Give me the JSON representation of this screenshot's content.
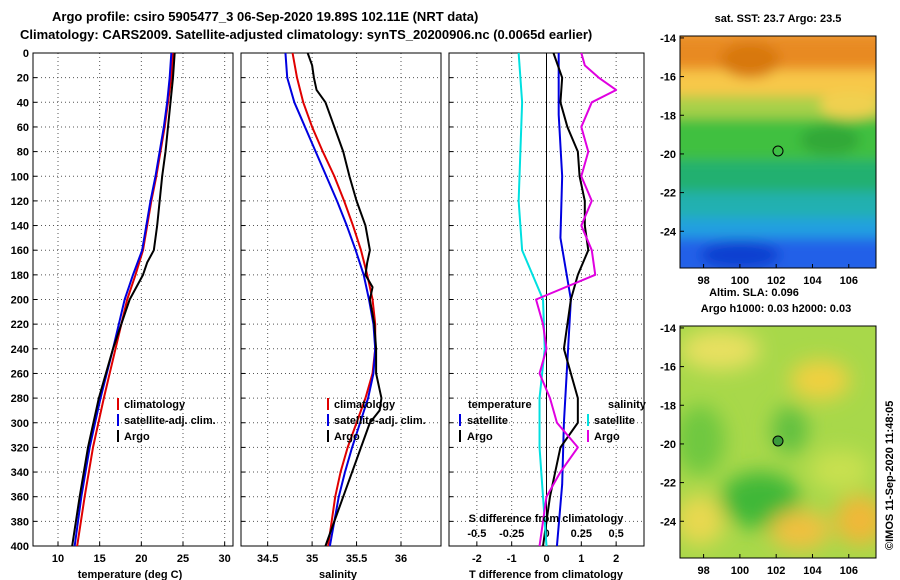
{
  "header": {
    "line1": "Argo profile: csiro 5905477_3 06-Sep-2020 19.89S 102.11E (NRT data)",
    "line2": "Climatology: CARS2009. Satellite-adjusted climatology: synTS_20200906.nc (0.0065d earlier)"
  },
  "chart_data": [
    {
      "type": "line",
      "title": "",
      "xlabel": "temperature (deg C)",
      "ylabel": "",
      "xlim": [
        7,
        31
      ],
      "ylim": [
        400,
        0
      ],
      "xticks": [
        10,
        15,
        20,
        25,
        30
      ],
      "yticks": [
        0,
        20,
        40,
        60,
        80,
        100,
        120,
        140,
        160,
        180,
        200,
        220,
        240,
        260,
        280,
        300,
        320,
        340,
        360,
        380,
        400
      ],
      "grid": true,
      "legend": [
        "climatology",
        "satellite-adj. clim.",
        "Argo"
      ],
      "series": [
        {
          "name": "climatology",
          "color": "#e00000",
          "y": [
            0,
            20,
            40,
            60,
            80,
            100,
            120,
            140,
            160,
            180,
            200,
            240,
            280,
            320,
            360,
            400
          ],
          "x": [
            23.8,
            23.6,
            23.2,
            22.8,
            22.3,
            21.8,
            21.2,
            20.7,
            20.2,
            19.3,
            18.3,
            16.9,
            15.5,
            14.2,
            13.2,
            12.3
          ]
        },
        {
          "name": "satellite-adj. clim.",
          "color": "#0000e0",
          "y": [
            0,
            20,
            40,
            60,
            80,
            100,
            120,
            140,
            160,
            180,
            200,
            240,
            280,
            320,
            360,
            400
          ],
          "x": [
            23.6,
            23.4,
            23.1,
            22.7,
            22.2,
            21.7,
            21.1,
            20.6,
            20.1,
            19.0,
            18.0,
            16.6,
            15.1,
            13.8,
            12.8,
            12.0
          ]
        },
        {
          "name": "Argo",
          "color": "#000000",
          "y": [
            0,
            20,
            40,
            60,
            80,
            100,
            120,
            140,
            160,
            170,
            180,
            200,
            240,
            280,
            320,
            360,
            400
          ],
          "x": [
            24.0,
            23.8,
            23.5,
            23.2,
            22.9,
            22.5,
            22.2,
            21.9,
            21.5,
            20.7,
            20.2,
            18.6,
            16.6,
            14.9,
            13.6,
            12.6,
            11.7
          ]
        }
      ]
    },
    {
      "type": "line",
      "title": "",
      "xlabel": "salinity",
      "ylabel": "",
      "xlim": [
        34.2,
        36.45
      ],
      "ylim": [
        400,
        0
      ],
      "xticks": [
        34.5,
        35,
        35.5,
        36
      ],
      "xtick_labels": [
        "34.5",
        "35",
        "35.5",
        "36"
      ],
      "grid": true,
      "legend": [
        "climatology",
        "satellite-adj. clim.",
        "Argo"
      ],
      "series": [
        {
          "name": "climatology",
          "color": "#e00000",
          "y": [
            0,
            20,
            40,
            60,
            80,
            100,
            120,
            140,
            160,
            180,
            200,
            220,
            240,
            260,
            280,
            300,
            320,
            340,
            360,
            380,
            400
          ],
          "x": [
            34.78,
            34.83,
            34.9,
            35.0,
            35.12,
            35.25,
            35.36,
            35.46,
            35.55,
            35.62,
            35.68,
            35.71,
            35.71,
            35.68,
            35.6,
            35.5,
            35.4,
            35.32,
            35.26,
            35.22,
            35.18
          ]
        },
        {
          "name": "satellite-adj. clim.",
          "color": "#0000e0",
          "y": [
            0,
            20,
            40,
            60,
            80,
            100,
            120,
            140,
            160,
            180,
            200,
            220,
            240,
            260,
            280,
            300,
            320,
            340,
            360,
            380,
            400
          ],
          "x": [
            34.7,
            34.72,
            34.8,
            34.92,
            35.04,
            35.16,
            35.28,
            35.39,
            35.49,
            35.58,
            35.64,
            35.69,
            35.71,
            35.69,
            35.63,
            35.54,
            35.45,
            35.37,
            35.3,
            35.25,
            35.2
          ]
        },
        {
          "name": "Argo",
          "color": "#000000",
          "y": [
            0,
            10,
            20,
            30,
            40,
            60,
            80,
            100,
            120,
            140,
            160,
            170,
            180,
            190,
            200,
            220,
            240,
            260,
            280,
            290,
            300,
            320,
            340,
            360,
            380,
            400
          ],
          "x": [
            34.95,
            35.0,
            35.02,
            35.05,
            35.15,
            35.25,
            35.35,
            35.42,
            35.5,
            35.6,
            35.65,
            35.62,
            35.6,
            35.68,
            35.65,
            35.7,
            35.72,
            35.72,
            35.78,
            35.76,
            35.65,
            35.55,
            35.45,
            35.35,
            35.25,
            35.15
          ]
        }
      ]
    },
    {
      "type": "line",
      "title": "",
      "xlabel": "T difference from climatology",
      "xlabel_top": "S difference from climatology",
      "ylabel": "",
      "xlim": [
        -2.8,
        2.8
      ],
      "ylim": [
        400,
        0
      ],
      "xticks": [
        -2,
        -1,
        0,
        1,
        2
      ],
      "xticks_top": [
        -0.5,
        -0.25,
        0,
        0.25,
        0.5
      ],
      "xtick_top_labels": [
        "-0.5",
        "-0.25",
        "0",
        "0.25",
        "0.5"
      ],
      "grid": true,
      "legend_temperature": {
        "title": "temperature",
        "items": [
          "satellite",
          "Argo"
        ]
      },
      "legend_salinity": {
        "title": "salinity",
        "items": [
          "satellite",
          "Argo"
        ]
      },
      "series": [
        {
          "name": "temperature satellite",
          "color": "#0000e0",
          "y": [
            0,
            50,
            100,
            150,
            200,
            250,
            300,
            350,
            400
          ],
          "x": [
            0.35,
            0.35,
            0.45,
            0.4,
            0.7,
            0.6,
            0.5,
            0.45,
            0.3
          ]
        },
        {
          "name": "temperature Argo",
          "color": "#000000",
          "y": [
            0,
            20,
            40,
            60,
            80,
            100,
            120,
            140,
            160,
            180,
            200,
            240,
            280,
            300,
            320,
            360,
            400
          ],
          "x": [
            0.2,
            0.45,
            0.4,
            0.6,
            0.9,
            0.95,
            1.1,
            1.1,
            1.2,
            0.9,
            0.7,
            0.5,
            0.9,
            0.9,
            0.4,
            0.1,
            -0.1
          ]
        },
        {
          "name": "salinity satellite",
          "color": "#00e0e0",
          "y": [
            0,
            40,
            80,
            120,
            160,
            200,
            240,
            280,
            320,
            360,
            400
          ],
          "x": [
            -0.8,
            -0.7,
            -0.75,
            -0.8,
            -0.7,
            -0.1,
            -0.05,
            -0.2,
            -0.2,
            -0.1,
            0.0
          ]
        },
        {
          "name": "salinity Argo",
          "color": "#e000e0",
          "y": [
            0,
            10,
            20,
            30,
            40,
            60,
            80,
            100,
            120,
            140,
            160,
            180,
            200,
            220,
            240,
            260,
            280,
            300,
            320,
            340,
            360,
            380,
            400
          ],
          "x": [
            1.0,
            1.1,
            1.5,
            2.0,
            1.3,
            1.0,
            1.2,
            1.0,
            1.3,
            1.0,
            1.3,
            1.4,
            -0.3,
            -0.1,
            0.0,
            -0.2,
            0.1,
            0.3,
            0.9,
            0.4,
            0.0,
            -0.1,
            -0.2
          ]
        }
      ]
    }
  ],
  "maps": {
    "sst": {
      "title": "sat. SST: 23.7 Argo: 23.5",
      "xticks": [
        "98",
        "100",
        "102",
        "104",
        "106"
      ],
      "yticks": [
        "-14",
        "-16",
        "-18",
        "-20",
        "-22",
        "-24"
      ]
    },
    "sla": {
      "title1": "Altim. SLA: 0.096",
      "title2": "Argo h1000: 0.03 h2000: 0.03",
      "xticks": [
        "98",
        "100",
        "102",
        "104",
        "106"
      ],
      "yticks": [
        "-14",
        "-16",
        "-18",
        "-20",
        "-22",
        "-24"
      ]
    }
  },
  "footer": {
    "credit": "©IMOS 11-Sep-2020 11:48:05"
  }
}
